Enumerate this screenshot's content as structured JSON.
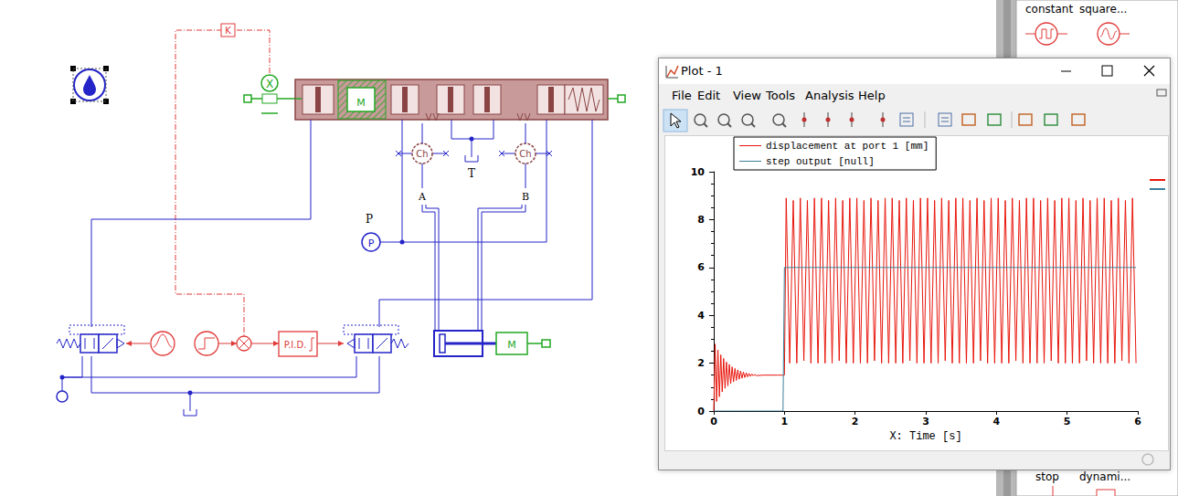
{
  "window": {
    "title": "Plot - 1",
    "menu": [
      "File",
      "Edit",
      "View",
      "Tools",
      "Analysis",
      "Help"
    ]
  },
  "palette": {
    "top": [
      "constant",
      "square..."
    ],
    "bottom": [
      "stop",
      "dynami..."
    ]
  },
  "diagram": {
    "ports": {
      "A": "A",
      "B": "B",
      "T": "T",
      "P": "P"
    },
    "source": "P",
    "chambers": [
      "Ch",
      "Ch"
    ],
    "masses": [
      "M",
      "M"
    ],
    "gain": "K",
    "sensor": "X",
    "controller": "P.I.D."
  },
  "chart_data": {
    "type": "line",
    "x_label": "X: Time [s]",
    "legend": "top-left",
    "grid": false,
    "xlim": [
      0,
      6
    ],
    "xticks": [
      0,
      1,
      2,
      3,
      4,
      5,
      6
    ],
    "ylim": [
      0,
      10
    ],
    "yticks": [
      0,
      2,
      4,
      6,
      8,
      10
    ],
    "x": [
      0,
      0.02,
      0.04,
      0.06,
      0.08,
      0.1,
      0.12,
      0.14,
      0.16,
      0.18,
      0.2,
      0.22,
      0.24,
      0.26,
      0.28,
      0.3,
      0.32,
      0.34,
      0.36,
      0.38,
      0.4,
      0.42,
      0.44,
      0.46,
      0.48,
      0.5,
      0.52,
      0.54,
      0.56,
      0.58,
      0.6,
      0.7,
      0.8,
      0.9,
      0.98,
      1.0,
      1.025,
      1.075,
      1.125,
      1.175,
      1.225,
      1.275,
      1.325,
      1.375,
      1.425,
      1.475,
      1.525,
      1.575,
      1.625,
      1.675,
      1.725,
      1.775,
      1.825,
      1.875,
      1.925,
      1.975,
      2.025,
      2.075,
      2.125,
      2.175,
      2.225,
      2.275,
      2.325,
      2.375,
      2.425,
      2.475,
      2.525,
      2.575,
      2.625,
      2.675,
      2.725,
      2.775,
      2.825,
      2.875,
      2.925,
      2.975,
      3.025,
      3.075,
      3.125,
      3.175,
      3.225,
      3.275,
      3.325,
      3.375,
      3.425,
      3.475,
      3.525,
      3.575,
      3.625,
      3.675,
      3.725,
      3.775,
      3.825,
      3.875,
      3.925,
      3.975,
      4.025,
      4.075,
      4.125,
      4.175,
      4.225,
      4.275,
      4.325,
      4.375,
      4.425,
      4.475,
      4.525,
      4.575,
      4.625,
      4.675,
      4.725,
      4.775,
      4.825,
      4.875,
      4.925,
      4.975,
      5.025,
      5.075,
      5.125,
      5.175,
      5.225,
      5.275,
      5.325,
      5.375,
      5.425,
      5.475,
      5.525,
      5.575,
      5.625,
      5.675,
      5.725,
      5.775,
      5.825,
      5.875,
      5.925,
      5.975
    ],
    "series": [
      {
        "name": "displacement at port 1 [mm]",
        "color": "#e8160c",
        "values": [
          0,
          2.8,
          0.4,
          2.55,
          0.6,
          2.35,
          0.8,
          2.2,
          0.95,
          2.05,
          1.05,
          1.95,
          1.15,
          1.85,
          1.22,
          1.78,
          1.28,
          1.72,
          1.33,
          1.67,
          1.37,
          1.63,
          1.4,
          1.6,
          1.43,
          1.57,
          1.45,
          1.55,
          1.47,
          1.53,
          1.48,
          1.5,
          1.5,
          1.5,
          1.5,
          1.5,
          8.9,
          2.0,
          8.8,
          2.0,
          8.9,
          2.1,
          8.8,
          2.0,
          8.9,
          2.0,
          8.9,
          2.0,
          8.8,
          2.0,
          8.9,
          2.1,
          8.8,
          2.0,
          8.9,
          2.0,
          8.9,
          2.0,
          8.8,
          2.0,
          8.9,
          2.1,
          8.8,
          2.0,
          8.9,
          2.0,
          8.9,
          2.0,
          8.8,
          2.0,
          8.9,
          2.1,
          8.8,
          2.0,
          8.9,
          2.0,
          8.9,
          2.0,
          8.8,
          2.0,
          8.9,
          2.1,
          8.8,
          2.0,
          8.9,
          2.0,
          8.9,
          2.0,
          8.8,
          2.0,
          8.9,
          2.1,
          8.8,
          2.0,
          8.9,
          2.0,
          8.9,
          2.0,
          8.8,
          2.0,
          8.9,
          2.1,
          8.8,
          2.0,
          8.9,
          2.0,
          8.9,
          2.0,
          8.8,
          2.0,
          8.9,
          2.1,
          8.8,
          2.0,
          8.9,
          2.0,
          8.9,
          2.0,
          8.8,
          2.0,
          8.9,
          2.1,
          8.8,
          2.0,
          8.9,
          2.0,
          8.9,
          2.0,
          8.8,
          2.0,
          8.9,
          2.1,
          8.8,
          2.0,
          8.9,
          2.0
        ]
      },
      {
        "name": "step output [null]",
        "color": "#3b7f9c",
        "values": [
          0,
          0,
          0,
          0,
          0,
          0,
          0,
          0,
          0,
          0,
          0,
          0,
          0,
          0,
          0,
          0,
          0,
          0,
          0,
          0,
          0,
          0,
          0,
          0,
          0,
          0,
          0,
          0,
          0,
          0,
          0,
          0,
          0,
          0,
          0,
          6,
          6,
          6,
          6,
          6,
          6,
          6,
          6,
          6,
          6,
          6,
          6,
          6,
          6,
          6,
          6,
          6,
          6,
          6,
          6,
          6,
          6,
          6,
          6,
          6,
          6,
          6,
          6,
          6,
          6,
          6,
          6,
          6,
          6,
          6,
          6,
          6,
          6,
          6,
          6,
          6,
          6,
          6,
          6,
          6,
          6,
          6,
          6,
          6,
          6,
          6,
          6,
          6,
          6,
          6,
          6,
          6,
          6,
          6,
          6,
          6,
          6,
          6,
          6,
          6,
          6,
          6,
          6,
          6,
          6,
          6,
          6,
          6,
          6,
          6,
          6,
          6,
          6,
          6,
          6,
          6,
          6,
          6,
          6,
          6,
          6,
          6,
          6,
          6,
          6,
          6,
          6,
          6,
          6,
          6,
          6,
          6,
          6,
          6,
          6,
          6
        ]
      }
    ]
  }
}
